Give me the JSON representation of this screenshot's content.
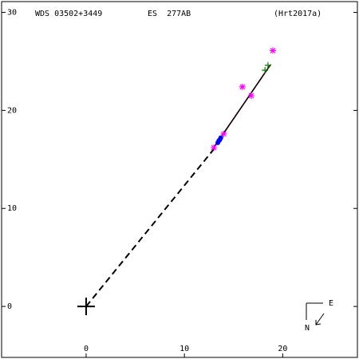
{
  "chart_data": {
    "type": "scatter",
    "header": [
      "WDS 03502+3449",
      "ES  277AB",
      "(Hrt2017a)"
    ],
    "xlim": [
      -8.6,
      27.6
    ],
    "ylim": [
      -5.2,
      31.1
    ],
    "xticks": [
      0,
      10,
      20
    ],
    "yticks": [
      0,
      10,
      20,
      30
    ],
    "series": [
      {
        "color": "#000000",
        "marker": "dashed-line",
        "x": [
          0,
          13.2
        ],
        "values": [
          0,
          16.3
        ]
      },
      {
        "color": "#cc0000",
        "marker": "line",
        "x": [
          12.9,
          18.8
        ],
        "values": [
          16.1,
          24.7
        ]
      },
      {
        "color": "#000000",
        "marker": "line",
        "x": [
          12.8,
          18.7
        ],
        "values": [
          15.9,
          24.6
        ]
      },
      {
        "color": "#ff00ff",
        "marker": "asterisk",
        "x": [
          15.9,
          19.0,
          16.8,
          13.0,
          14.0
        ],
        "values": [
          22.4,
          26.1,
          21.5,
          16.2,
          17.6
        ]
      },
      {
        "color": "#008000",
        "marker": "plus",
        "x": [
          18.5,
          18.2
        ],
        "values": [
          24.6,
          24.1
        ]
      },
      {
        "color": "#0000ff",
        "marker": "circle",
        "x": [
          13.5,
          13.7,
          13.6,
          13.4
        ],
        "values": [
          16.9,
          17.2,
          17.0,
          16.7
        ]
      },
      {
        "color": "#000000",
        "marker": "cross",
        "x": [
          0
        ],
        "values": [
          0
        ]
      }
    ],
    "compass": [
      "E",
      "N"
    ]
  }
}
